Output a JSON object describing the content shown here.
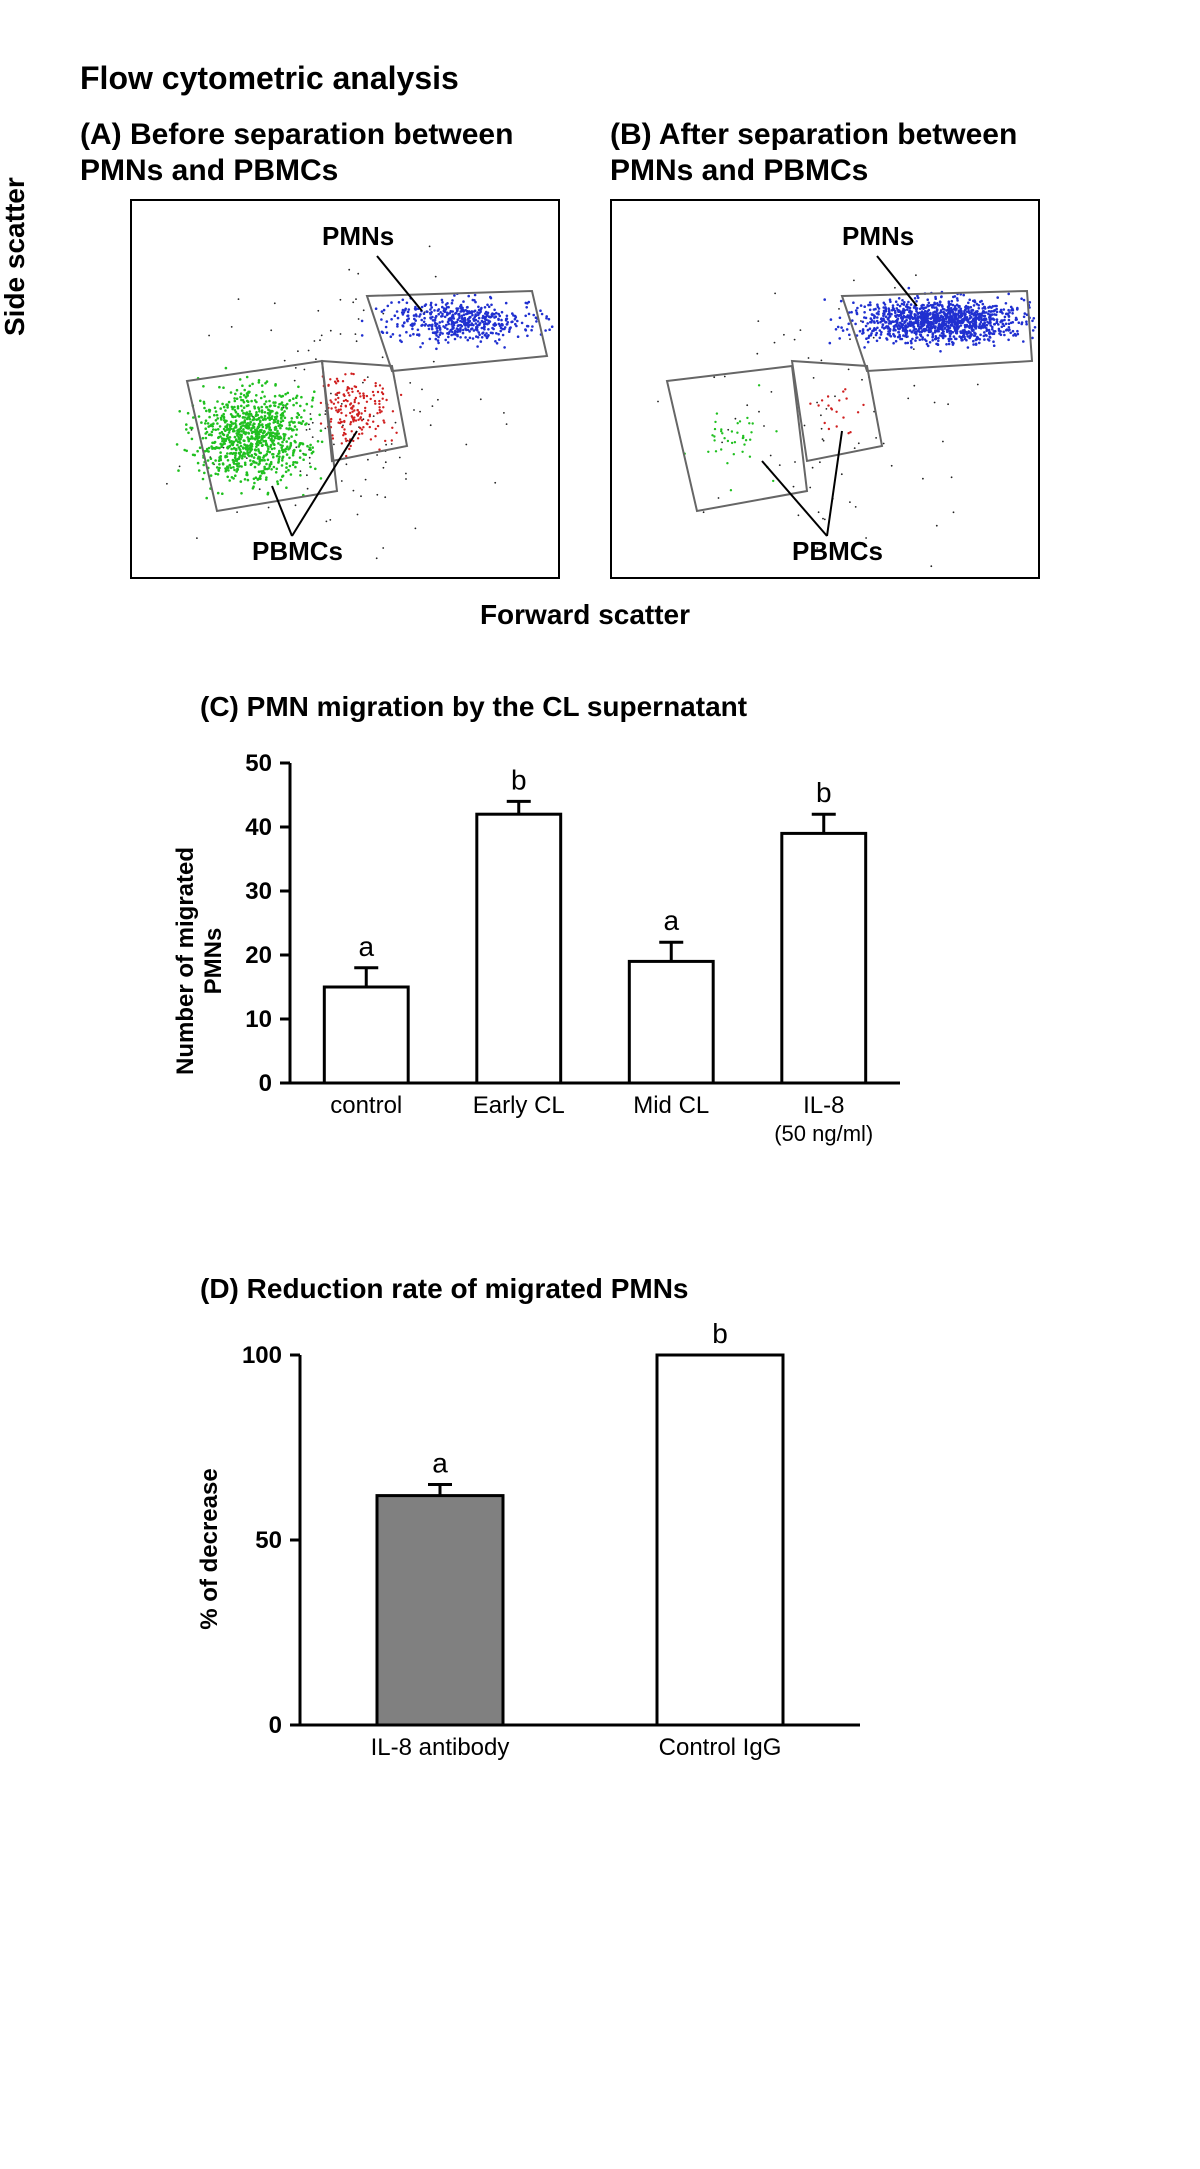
{
  "main_title": "Flow cytometric analysis",
  "panel_a_title": "(A) Before separation between PMNs and PBMCs",
  "panel_b_title": "(B) After separation between PMNs and PBMCs",
  "y_axis_scatter": "Side scatter",
  "x_axis_scatter": "Forward scatter",
  "pmn_label": "PMNs",
  "pbmc_label": "PBMCs",
  "panel_c": {
    "title": "(C) PMN migration by the CL supernatant",
    "y_label": "Number of migrated PMNs",
    "y_max": 50,
    "y_tick_step": 10,
    "bars": [
      {
        "label": "control",
        "value": 15,
        "err": 3,
        "sig": "a",
        "fill": "#ffffff"
      },
      {
        "label": "Early CL",
        "value": 42,
        "err": 2,
        "sig": "b",
        "fill": "#ffffff"
      },
      {
        "label": "Mid CL",
        "value": 19,
        "err": 3,
        "sig": "a",
        "fill": "#ffffff"
      },
      {
        "label": "IL-8",
        "sublabel": "(50 ng/ml)",
        "value": 39,
        "err": 3,
        "sig": "b",
        "fill": "#ffffff"
      }
    ],
    "bar_border": "#000000",
    "axis_color": "#000000",
    "label_fontsize": 24
  },
  "panel_d": {
    "title": "(D) Reduction rate of migrated PMNs",
    "y_label": "% of decrease",
    "y_max": 100,
    "y_ticks": [
      0,
      50,
      100
    ],
    "bars": [
      {
        "label": "IL-8 antibody",
        "value": 62,
        "err": 3,
        "sig": "a",
        "fill": "#808080"
      },
      {
        "label": "Control IgG",
        "value": 100,
        "err": 0,
        "sig": "b",
        "fill": "#ffffff"
      }
    ],
    "bar_border": "#000000",
    "axis_color": "#000000",
    "label_fontsize": 24
  },
  "scatter_colors": {
    "pmn": "#2030d0",
    "pbmc_green": "#20c020",
    "pbmc_red": "#d02020",
    "dot_black": "#222222"
  }
}
